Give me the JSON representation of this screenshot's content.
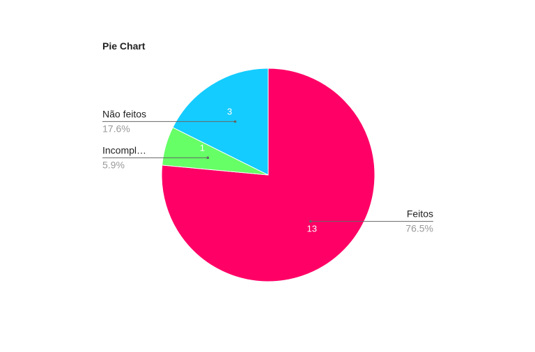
{
  "chart_data": {
    "type": "pie",
    "title": "Pie Chart",
    "slices": [
      {
        "label": "Feitos",
        "value": 13,
        "percent": "76.5%",
        "color": "#ff0066"
      },
      {
        "label": "Incompl…",
        "value": 1,
        "percent": "5.9%",
        "color": "#66ff66"
      },
      {
        "label": "Não feitos",
        "value": 3,
        "percent": "17.6%",
        "color": "#14ccff"
      }
    ],
    "start_angle_deg": 0,
    "direction": "clockwise",
    "legend": "none"
  },
  "colors": {
    "leader_line": "#666666",
    "label_text": "#222222",
    "percent_text": "#999999",
    "value_text": "#ffffff"
  }
}
